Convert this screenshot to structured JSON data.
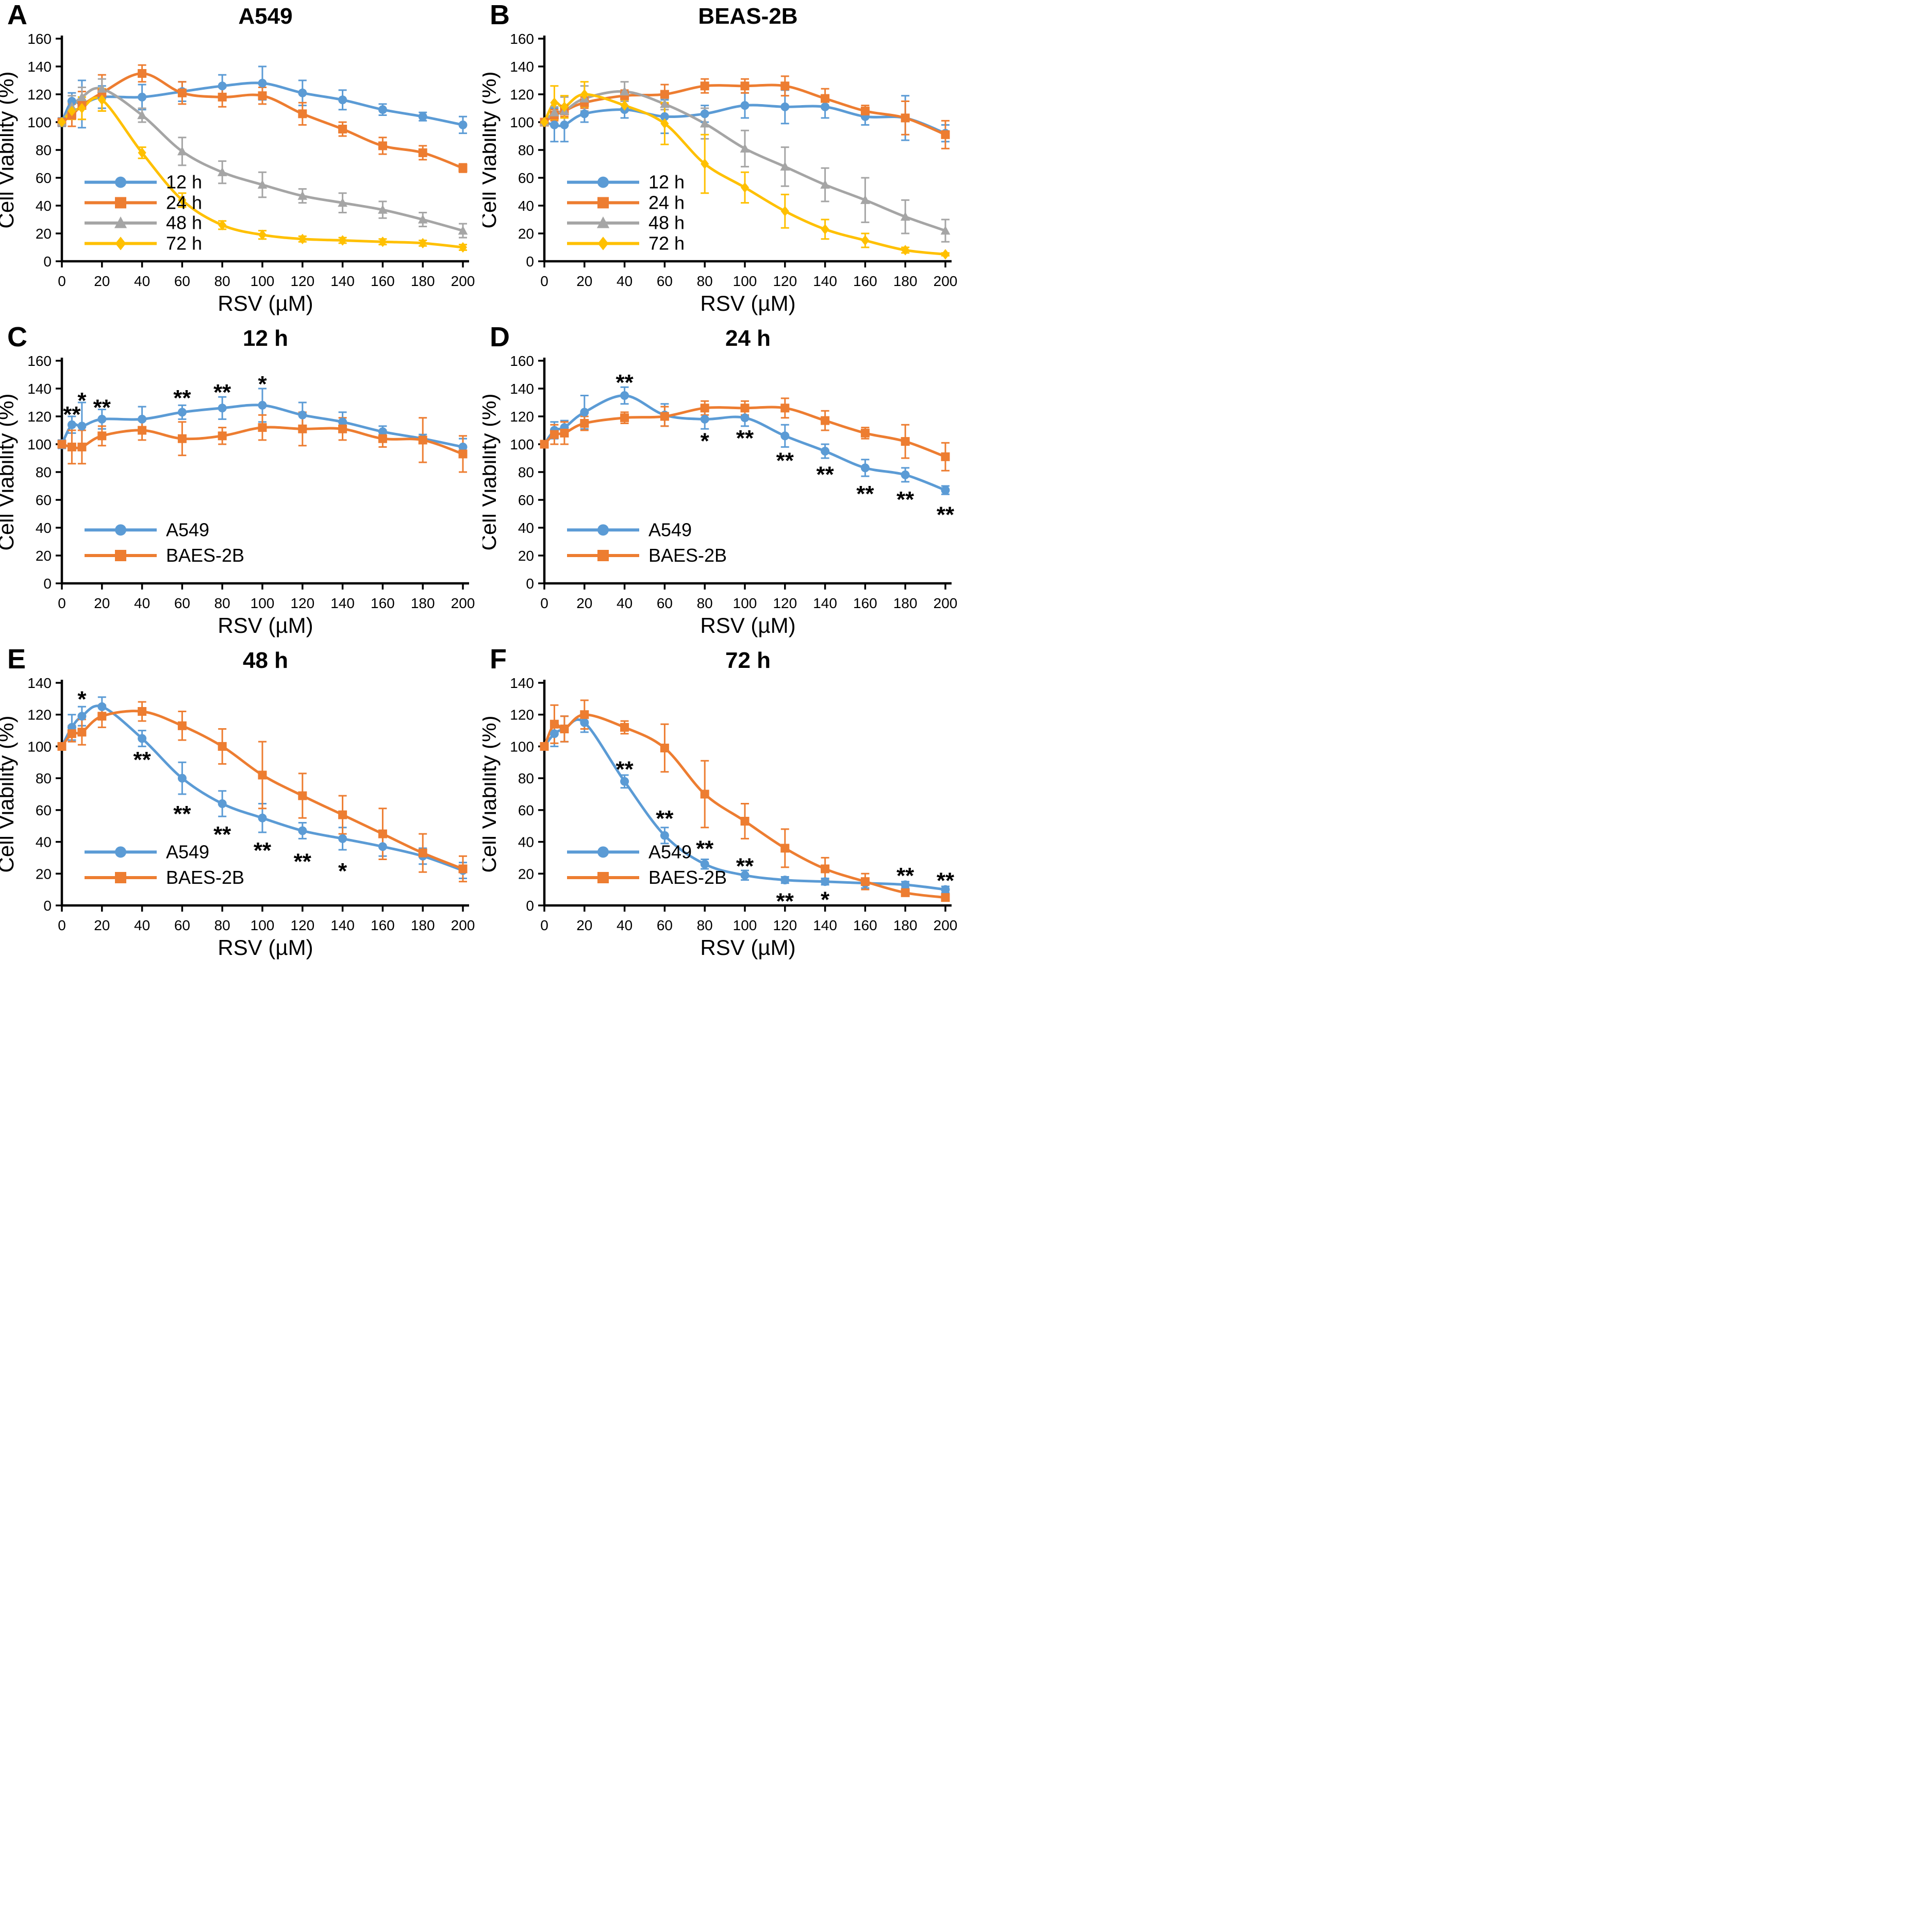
{
  "figure": {
    "background": "#ffffff",
    "text_color": "#000000",
    "grid": "off",
    "legend_position": "inside lower-left"
  },
  "chart_data": [
    {
      "panel": "A",
      "title": "A549",
      "type": "line",
      "xlabel": "RSV (µM)",
      "ylabel": "Cell Viability (%)",
      "x": [
        0,
        5,
        10,
        20,
        40,
        60,
        80,
        100,
        120,
        140,
        160,
        180,
        200
      ],
      "xticks": [
        0,
        20,
        40,
        60,
        80,
        100,
        120,
        140,
        160,
        180,
        200
      ],
      "xlim": [
        0,
        200
      ],
      "ylim": [
        0,
        160
      ],
      "ytick_step": 20,
      "legend_rows": [
        0.645,
        0.737,
        0.828,
        0.92
      ],
      "series": [
        {
          "name": "12 h",
          "color": "#5B9BD5",
          "marker": "circle",
          "values": [
            100,
            115,
            113,
            118,
            118,
            122,
            126,
            128,
            121,
            116,
            109,
            104,
            98
          ],
          "errors": [
            3,
            6,
            17,
            8,
            9,
            7,
            8,
            12,
            9,
            7,
            4,
            3,
            6
          ]
        },
        {
          "name": "24 h",
          "color": "#ED7D31",
          "marker": "square",
          "values": [
            100,
            105,
            112,
            121,
            135,
            121,
            118,
            119,
            106,
            95,
            83,
            78,
            67
          ],
          "errors": [
            2,
            8,
            10,
            13,
            6,
            8,
            7,
            6,
            8,
            5,
            6,
            5,
            3
          ]
        },
        {
          "name": "48 h",
          "color": "#A5A5A5",
          "marker": "triangle",
          "values": [
            100,
            111,
            118,
            124,
            105,
            79,
            64,
            55,
            47,
            42,
            37,
            30,
            22
          ],
          "errors": [
            2,
            8,
            7,
            7,
            5,
            10,
            8,
            9,
            5,
            7,
            6,
            5,
            5
          ]
        },
        {
          "name": "72 h",
          "color": "#FFC000",
          "marker": "diamond",
          "values": [
            100,
            108,
            110,
            116,
            78,
            44,
            26,
            19,
            16,
            15,
            14,
            13,
            10
          ],
          "errors": [
            2,
            6,
            8,
            8,
            4,
            5,
            3,
            3,
            2,
            2,
            2,
            2,
            2
          ]
        }
      ],
      "annotations": []
    },
    {
      "panel": "B",
      "title": "BEAS-2B",
      "type": "line",
      "xlabel": "RSV (µM)",
      "ylabel": "Cell Viability (%)",
      "x": [
        0,
        5,
        10,
        20,
        40,
        60,
        80,
        100,
        120,
        140,
        160,
        180,
        200
      ],
      "xticks": [
        0,
        20,
        40,
        60,
        80,
        100,
        120,
        140,
        160,
        180,
        200
      ],
      "xlim": [
        0,
        200
      ],
      "ylim": [
        0,
        160
      ],
      "ytick_step": 20,
      "legend_rows": [
        0.645,
        0.737,
        0.828,
        0.92
      ],
      "series": [
        {
          "name": "12 h",
          "color": "#5B9BD5",
          "marker": "circle",
          "values": [
            100,
            98,
            98,
            106,
            109,
            104,
            106,
            112,
            111,
            111,
            104,
            103,
            92
          ],
          "errors": [
            2,
            12,
            12,
            6,
            6,
            12,
            6,
            9,
            12,
            8,
            6,
            16,
            6
          ]
        },
        {
          "name": "24 h",
          "color": "#ED7D31",
          "marker": "square",
          "values": [
            100,
            105,
            108,
            114,
            119,
            120,
            126,
            126,
            126,
            117,
            108,
            103,
            91
          ],
          "errors": [
            2,
            4,
            4,
            4,
            4,
            7,
            5,
            5,
            7,
            7,
            4,
            12,
            10
          ]
        },
        {
          "name": "48 h",
          "color": "#A5A5A5",
          "marker": "triangle",
          "values": [
            100,
            107,
            108,
            117,
            122,
            113,
            99,
            81,
            68,
            55,
            44,
            32,
            22
          ],
          "errors": [
            2,
            4,
            10,
            9,
            7,
            4,
            11,
            13,
            14,
            12,
            16,
            12,
            8
          ]
        },
        {
          "name": "72 h",
          "color": "#FFC000",
          "marker": "diamond",
          "values": [
            100,
            114,
            111,
            120,
            112,
            99,
            70,
            53,
            36,
            23,
            15,
            8,
            5
          ],
          "errors": [
            2,
            12,
            8,
            9,
            4,
            15,
            21,
            11,
            12,
            7,
            5,
            2,
            1
          ]
        }
      ],
      "annotations": []
    },
    {
      "panel": "C",
      "title": "12 h",
      "type": "line",
      "xlabel": "RSV (µM)",
      "ylabel": "Cell Viability (%)",
      "x": [
        0,
        5,
        10,
        20,
        40,
        60,
        80,
        100,
        120,
        140,
        160,
        180,
        200
      ],
      "xticks": [
        0,
        20,
        40,
        60,
        80,
        100,
        120,
        140,
        160,
        180,
        200
      ],
      "xlim": [
        0,
        200
      ],
      "ylim": [
        0,
        160
      ],
      "ytick_step": 20,
      "legend_rows": [
        0.76,
        0.875
      ],
      "series": [
        {
          "name": "A549",
          "color": "#5B9BD5",
          "marker": "circle",
          "values": [
            100,
            114,
            113,
            118,
            118,
            123,
            126,
            128,
            121,
            116,
            109,
            104,
            98
          ],
          "errors": [
            3,
            6,
            17,
            7,
            9,
            5,
            8,
            12,
            9,
            7,
            4,
            3,
            6
          ]
        },
        {
          "name": "BAES-2B",
          "color": "#ED7D31",
          "marker": "square",
          "values": [
            100,
            98,
            98,
            106,
            110,
            104,
            106,
            112,
            111,
            111,
            104,
            103,
            93
          ],
          "errors": [
            2,
            12,
            12,
            7,
            7,
            12,
            6,
            9,
            12,
            8,
            6,
            16,
            13
          ]
        }
      ],
      "annotations": [
        {
          "x": 5,
          "y": 124,
          "text": "**"
        },
        {
          "x": 10,
          "y": 134,
          "text": "*"
        },
        {
          "x": 20,
          "y": 129,
          "text": "**"
        },
        {
          "x": 60,
          "y": 136,
          "text": "**"
        },
        {
          "x": 80,
          "y": 140,
          "text": "**"
        },
        {
          "x": 100,
          "y": 146,
          "text": "*"
        }
      ]
    },
    {
      "panel": "D",
      "title": "24 h",
      "type": "line",
      "xlabel": "RSV (µM)",
      "ylabel": "Cell Viability (%)",
      "x": [
        0,
        5,
        10,
        20,
        40,
        60,
        80,
        100,
        120,
        140,
        160,
        180,
        200
      ],
      "xticks": [
        0,
        20,
        40,
        60,
        80,
        100,
        120,
        140,
        160,
        180,
        200
      ],
      "xlim": [
        0,
        200
      ],
      "ylim": [
        0,
        160
      ],
      "ytick_step": 20,
      "legend_rows": [
        0.76,
        0.875
      ],
      "series": [
        {
          "name": "A549",
          "color": "#5B9BD5",
          "marker": "circle",
          "values": [
            100,
            110,
            112,
            123,
            135,
            121,
            118,
            119,
            106,
            95,
            83,
            78,
            67
          ],
          "errors": [
            2,
            6,
            5,
            12,
            6,
            8,
            7,
            6,
            8,
            5,
            6,
            5,
            3
          ]
        },
        {
          "name": "BAES-2B",
          "color": "#ED7D31",
          "marker": "square",
          "values": [
            100,
            107,
            108,
            115,
            119,
            120,
            126,
            126,
            126,
            117,
            108,
            102,
            91
          ],
          "errors": [
            2,
            7,
            8,
            5,
            4,
            7,
            5,
            5,
            7,
            7,
            4,
            12,
            10
          ]
        }
      ],
      "annotations": [
        {
          "x": 40,
          "y": 147,
          "text": "**"
        },
        {
          "x": 80,
          "y": 105,
          "text": "*"
        },
        {
          "x": 100,
          "y": 107,
          "text": "**"
        },
        {
          "x": 120,
          "y": 91,
          "text": "**"
        },
        {
          "x": 140,
          "y": 81,
          "text": "**"
        },
        {
          "x": 160,
          "y": 67,
          "text": "**"
        },
        {
          "x": 180,
          "y": 63,
          "text": "**"
        },
        {
          "x": 200,
          "y": 52,
          "text": "**"
        }
      ]
    },
    {
      "panel": "E",
      "title": "48 h",
      "type": "line",
      "xlabel": "RSV (µM)",
      "ylabel": "Cell Viability (%)",
      "x": [
        0,
        5,
        10,
        20,
        40,
        60,
        80,
        100,
        120,
        140,
        160,
        180,
        200
      ],
      "xticks": [
        0,
        20,
        40,
        60,
        80,
        100,
        120,
        140,
        160,
        180,
        200
      ],
      "xlim": [
        0,
        200
      ],
      "ylim": [
        0,
        140
      ],
      "ytick_step": 20,
      "legend_rows": [
        0.76,
        0.875
      ],
      "series": [
        {
          "name": "A549",
          "color": "#5B9BD5",
          "marker": "circle",
          "values": [
            100,
            112,
            119,
            125,
            105,
            80,
            64,
            55,
            47,
            42,
            37,
            31,
            22
          ],
          "errors": [
            2,
            8,
            6,
            6,
            5,
            10,
            8,
            9,
            5,
            7,
            6,
            5,
            5
          ]
        },
        {
          "name": "BAES-2B",
          "color": "#ED7D31",
          "marker": "square",
          "values": [
            100,
            108,
            109,
            119,
            122,
            113,
            100,
            82,
            69,
            57,
            45,
            33,
            23
          ],
          "errors": [
            2,
            5,
            8,
            7,
            6,
            9,
            11,
            21,
            14,
            12,
            16,
            12,
            8
          ]
        }
      ],
      "annotations": [
        {
          "x": 10,
          "y": 132,
          "text": "*"
        },
        {
          "x": 40,
          "y": 94,
          "text": "**"
        },
        {
          "x": 60,
          "y": 60,
          "text": "**"
        },
        {
          "x": 80,
          "y": 47,
          "text": "**"
        },
        {
          "x": 100,
          "y": 37,
          "text": "**"
        },
        {
          "x": 120,
          "y": 30,
          "text": "**"
        },
        {
          "x": 140,
          "y": 24,
          "text": "*"
        }
      ]
    },
    {
      "panel": "F",
      "title": "72 h",
      "type": "line",
      "xlabel": "RSV (µM)",
      "ylabel": "Cell Viability (%)",
      "x": [
        0,
        5,
        10,
        20,
        40,
        60,
        80,
        100,
        120,
        140,
        160,
        180,
        200
      ],
      "xticks": [
        0,
        20,
        40,
        60,
        80,
        100,
        120,
        140,
        160,
        180,
        200
      ],
      "xlim": [
        0,
        200
      ],
      "ylim": [
        0,
        140
      ],
      "ytick_step": 20,
      "legend_rows": [
        0.76,
        0.875
      ],
      "series": [
        {
          "name": "A549",
          "color": "#5B9BD5",
          "marker": "circle",
          "values": [
            100,
            108,
            111,
            115,
            78,
            44,
            26,
            19,
            16,
            15,
            14,
            13,
            10
          ],
          "errors": [
            2,
            8,
            8,
            6,
            4,
            5,
            3,
            3,
            2,
            2,
            3,
            2,
            2
          ]
        },
        {
          "name": "BAES-2B",
          "color": "#ED7D31",
          "marker": "square",
          "values": [
            100,
            114,
            111,
            120,
            112,
            99,
            70,
            53,
            36,
            23,
            15,
            8,
            5
          ],
          "errors": [
            2,
            12,
            8,
            9,
            4,
            15,
            21,
            11,
            12,
            7,
            5,
            2,
            1
          ]
        }
      ],
      "annotations": [
        {
          "x": 40,
          "y": 88,
          "text": "**"
        },
        {
          "x": 60,
          "y": 57,
          "text": "**"
        },
        {
          "x": 80,
          "y": 38,
          "text": "**"
        },
        {
          "x": 100,
          "y": 27,
          "text": "**"
        },
        {
          "x": 120,
          "y": 5,
          "text": "**"
        },
        {
          "x": 140,
          "y": 6,
          "text": "*"
        },
        {
          "x": 180,
          "y": 21,
          "text": "**"
        },
        {
          "x": 200,
          "y": 18,
          "text": "**"
        }
      ]
    }
  ]
}
